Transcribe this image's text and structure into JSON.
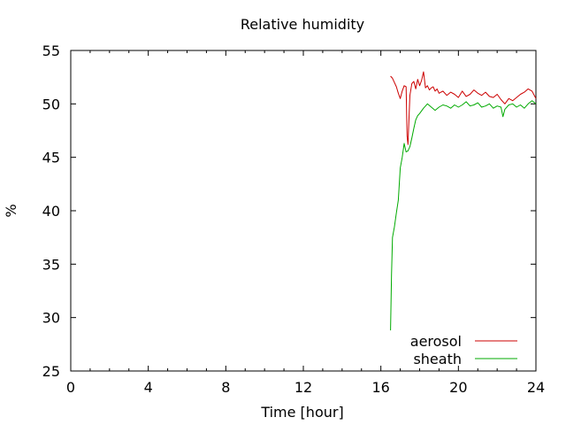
{
  "chart_data": {
    "type": "line",
    "title": "Relative humidity",
    "xlabel": "Time [hour]",
    "ylabel": "%",
    "xlim": [
      0,
      24
    ],
    "ylim": [
      25,
      55
    ],
    "xticks": [
      0,
      4,
      8,
      12,
      16,
      20,
      24
    ],
    "yticks": [
      25,
      30,
      35,
      40,
      45,
      50,
      55
    ],
    "grid": false,
    "legend_position": "bottom-right",
    "series": [
      {
        "name": "aerosol",
        "color": "#cc0000",
        "x": [
          16.5,
          16.6,
          16.7,
          16.8,
          16.9,
          17.0,
          17.1,
          17.2,
          17.3,
          17.35,
          17.4,
          17.45,
          17.5,
          17.6,
          17.7,
          17.8,
          17.9,
          18.0,
          18.1,
          18.2,
          18.3,
          18.4,
          18.5,
          18.6,
          18.7,
          18.8,
          18.9,
          19.0,
          19.2,
          19.4,
          19.6,
          19.8,
          20.0,
          20.2,
          20.4,
          20.6,
          20.8,
          21.0,
          21.2,
          21.4,
          21.6,
          21.8,
          22.0,
          22.2,
          22.4,
          22.6,
          22.8,
          23.0,
          23.2,
          23.4,
          23.6,
          23.8,
          24.0
        ],
        "y": [
          52.6,
          52.4,
          52.0,
          51.6,
          51.0,
          50.5,
          51.2,
          51.7,
          51.6,
          47.0,
          46.2,
          48.5,
          50.8,
          51.9,
          52.1,
          51.4,
          52.3,
          51.7,
          52.2,
          53.0,
          51.5,
          51.7,
          51.3,
          51.5,
          51.6,
          51.2,
          51.4,
          51.0,
          51.2,
          50.8,
          51.1,
          50.9,
          50.6,
          51.2,
          50.7,
          50.9,
          51.3,
          51.0,
          50.8,
          51.1,
          50.7,
          50.6,
          50.9,
          50.4,
          50.0,
          50.5,
          50.3,
          50.6,
          50.9,
          51.1,
          51.4,
          51.2,
          50.5
        ]
      },
      {
        "name": "sheath",
        "color": "#00aa00",
        "x": [
          16.5,
          16.55,
          16.6,
          16.7,
          16.8,
          16.9,
          17.0,
          17.1,
          17.2,
          17.3,
          17.4,
          17.5,
          17.6,
          17.7,
          17.8,
          17.9,
          18.0,
          18.2,
          18.4,
          18.6,
          18.8,
          19.0,
          19.2,
          19.4,
          19.6,
          19.8,
          20.0,
          20.2,
          20.4,
          20.6,
          20.8,
          21.0,
          21.2,
          21.4,
          21.6,
          21.8,
          22.0,
          22.2,
          22.3,
          22.4,
          22.6,
          22.8,
          23.0,
          23.2,
          23.4,
          23.6,
          23.8,
          24.0
        ],
        "y": [
          28.8,
          34.0,
          37.5,
          38.5,
          39.8,
          41.0,
          44.0,
          45.0,
          46.3,
          45.5,
          45.6,
          46.0,
          46.8,
          47.7,
          48.5,
          48.9,
          49.1,
          49.6,
          50.0,
          49.7,
          49.4,
          49.7,
          49.9,
          49.8,
          49.6,
          49.9,
          49.7,
          49.9,
          50.2,
          49.8,
          49.9,
          50.1,
          49.7,
          49.8,
          50.0,
          49.6,
          49.8,
          49.7,
          48.8,
          49.5,
          49.9,
          50.0,
          49.7,
          49.9,
          49.6,
          50.0,
          50.3,
          50.0
        ]
      }
    ]
  }
}
